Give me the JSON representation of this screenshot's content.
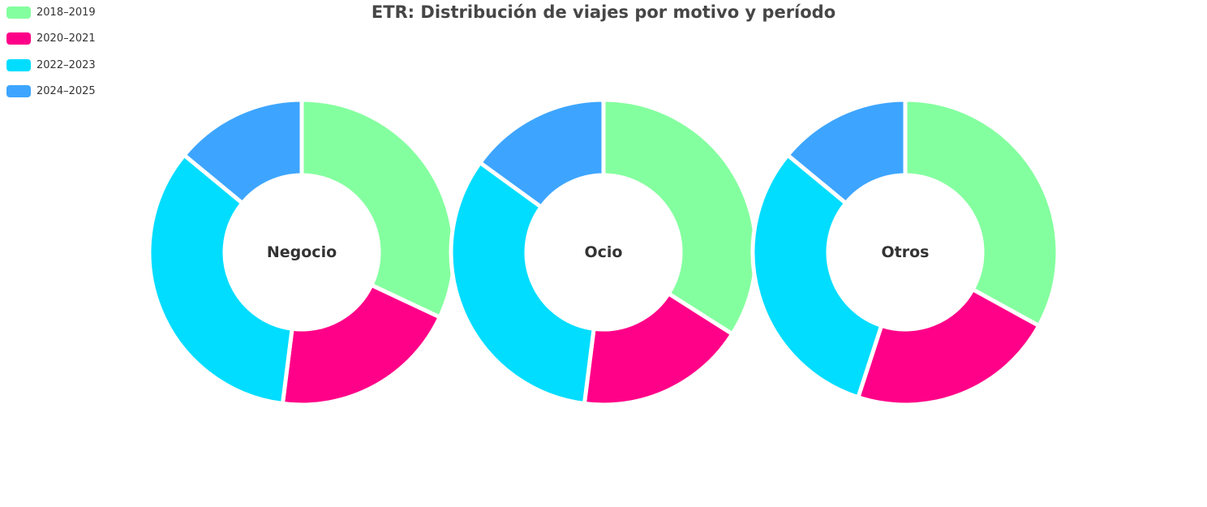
{
  "chart_data": {
    "type": "pie",
    "title": "ETR: Distribución de viajes por motivo y período",
    "legend_position": "top-left",
    "legend": [
      {
        "label": "2018–2019",
        "color": "#84ff9f"
      },
      {
        "label": "2020–2021",
        "color": "#ff0088"
      },
      {
        "label": "2022–2023",
        "color": "#00ddff"
      },
      {
        "label": "2024–2025",
        "color": "#3da5ff"
      }
    ],
    "charts": [
      {
        "name": "Negocio",
        "values": [
          32,
          20,
          34,
          14
        ]
      },
      {
        "name": "Ocio",
        "values": [
          34,
          18,
          33,
          15
        ]
      },
      {
        "name": "Otros",
        "values": [
          33,
          22,
          31,
          14
        ]
      }
    ]
  }
}
